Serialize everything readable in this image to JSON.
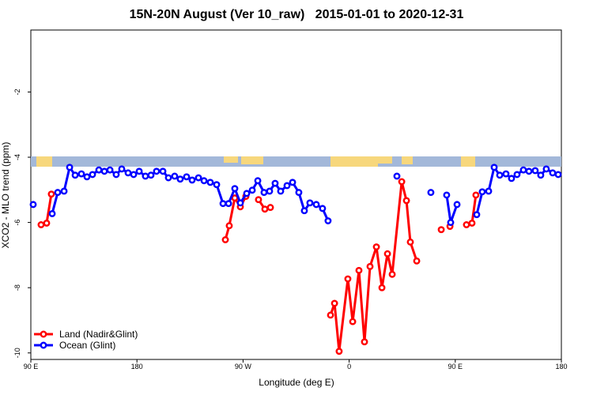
{
  "chart_data": {
    "type": "line",
    "title": "15N-20N August (Ver 10_raw)   2015-01-01 to 2020-12-31",
    "x_label": "Longitude (deg E)",
    "y_label": "XCO2 - MLO trend (ppm)",
    "xlim": [
      90,
      540
    ],
    "xticks": [
      {
        "value": 90,
        "label": "90 E"
      },
      {
        "value": 180,
        "label": "180"
      },
      {
        "value": 270,
        "label": "90 W"
      },
      {
        "value": 360,
        "label": "0"
      },
      {
        "value": 450,
        "label": "90 E"
      },
      {
        "value": 540,
        "label": "180"
      }
    ],
    "ylim": [
      -10.2,
      -0.1
    ],
    "yticks": [
      -10,
      -8,
      -6,
      -4,
      -2
    ],
    "legend": "bottom-left",
    "series": [
      {
        "name": "Land (Nadir&Glint)",
        "color": "#ff0000",
        "x": [
          98.7,
          103.4,
          107.4,
          180,
          255.0,
          258.3,
          263.0,
          267.7,
          272.4,
          278,
          283.1,
          288.5,
          293.2,
          320,
          344.2,
          347.6,
          351.5,
          358.9,
          363.0,
          368.3,
          373.0,
          377.7,
          383.1,
          387.8,
          392.5,
          396.5,
          404.6,
          408.6,
          411.9,
          417.3,
          428,
          438.1,
          442,
          445.5,
          452,
          459.5,
          464.2,
          467.5
        ],
        "values": [
          -6.07,
          -6.02,
          -5.13,
          null,
          -6.53,
          -6.1,
          -5.25,
          -5.52,
          -5.2,
          null,
          -5.3,
          -5.59,
          -5.54,
          null,
          -8.84,
          -8.48,
          -9.95,
          -7.73,
          -9.04,
          -7.47,
          -9.66,
          -7.35,
          -6.75,
          -8.0,
          -6.96,
          -7.59,
          -4.75,
          -5.33,
          -6.6,
          -7.18,
          null,
          -6.22,
          null,
          -6.12,
          null,
          -6.07,
          -6.02,
          -5.16
        ]
      },
      {
        "name": "Ocean (Glint)",
        "color": "#0000ff",
        "x": [
          92.0,
          100,
          108.1,
          112.8,
          118.2,
          122.9,
          127.6,
          132.9,
          137.6,
          142.3,
          147.7,
          152.4,
          157.1,
          162.4,
          167.1,
          172.5,
          177.2,
          181.9,
          187.2,
          191.9,
          196.6,
          202.0,
          206.7,
          212.0,
          216.7,
          222.1,
          226.8,
          232.2,
          236.9,
          242.2,
          247.6,
          253.0,
          257.7,
          263.0,
          267.7,
          273.1,
          277.8,
          282.5,
          287.8,
          292.5,
          297.2,
          301.9,
          307.3,
          312.0,
          317.3,
          322.0,
          326.7,
          332.1,
          337.4,
          342.1,
          370,
          400.5,
          415,
          429.3,
          436,
          442.7,
          446.1,
          451.5,
          460,
          468.2,
          472.9,
          478.3,
          483.0,
          487.7,
          493.0,
          497.7,
          502.4,
          507.8,
          512.5,
          517.8,
          522.5,
          527.2,
          532.6,
          537.3
        ],
        "values": [
          -5.45,
          null,
          -5.73,
          -5.08,
          -5.04,
          -4.31,
          -4.55,
          -4.51,
          -4.6,
          -4.53,
          -4.39,
          -4.43,
          -4.39,
          -4.53,
          -4.36,
          -4.48,
          -4.53,
          -4.43,
          -4.58,
          -4.55,
          -4.43,
          -4.43,
          -4.63,
          -4.58,
          -4.67,
          -4.6,
          -4.7,
          -4.63,
          -4.72,
          -4.77,
          -4.84,
          -5.42,
          -5.42,
          -4.96,
          -5.4,
          -5.11,
          -5.01,
          -4.72,
          -5.08,
          -5.04,
          -4.8,
          -5.04,
          -4.87,
          -4.77,
          -5.08,
          -5.64,
          -5.4,
          -5.45,
          -5.57,
          -5.95,
          null,
          -4.58,
          null,
          -5.08,
          null,
          -5.16,
          -6.0,
          -5.45,
          null,
          -5.76,
          -5.06,
          -5.04,
          -4.31,
          -4.55,
          -4.51,
          -4.65,
          -4.53,
          -4.39,
          -4.43,
          -4.41,
          -4.55,
          -4.36,
          -4.48,
          -4.53
        ]
      }
    ]
  }
}
